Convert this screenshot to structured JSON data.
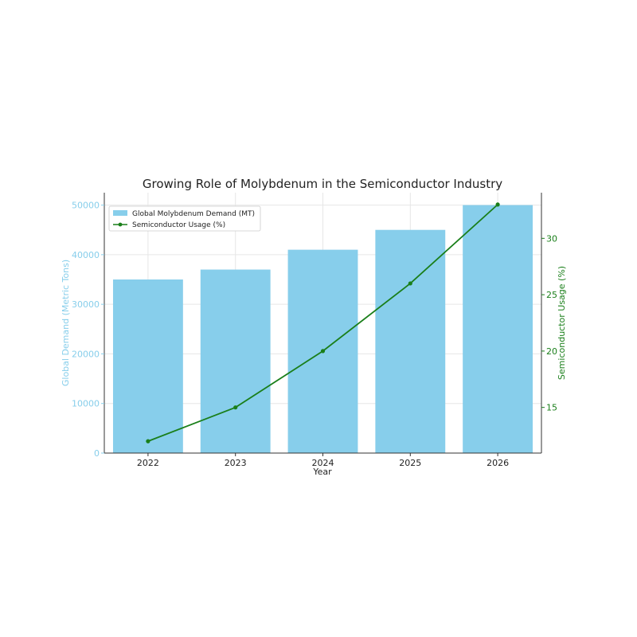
{
  "chart_data": {
    "type": "bar",
    "title": "Growing Role of Molybdenum in the Semiconductor Industry",
    "xlabel": "Year",
    "categories": [
      "2022",
      "2023",
      "2024",
      "2025",
      "2026"
    ],
    "bar_series": {
      "name": "Global Molybdenum Demand (MT)",
      "values": [
        35000,
        37000,
        41000,
        45000,
        50000
      ],
      "color": "#87CEEB"
    },
    "line_series": {
      "name": "Semiconductor Usage (%)",
      "type": "line",
      "values": [
        12,
        15,
        20,
        26,
        33
      ],
      "color": "#1a7f1a"
    },
    "y_left": {
      "label": "Global Demand (Metric Tons)",
      "ylim": [
        0,
        52500
      ],
      "ticks": [
        0,
        10000,
        20000,
        30000,
        40000,
        50000
      ],
      "tick_labels": [
        "0",
        "10000",
        "20000",
        "30000",
        "40000",
        "50000"
      ],
      "color": "#87CEEB"
    },
    "y_right": {
      "label": "Semiconductor Usage (%)",
      "ylim": [
        10.95,
        34.05
      ],
      "ticks": [
        15,
        20,
        25,
        30
      ],
      "tick_labels": [
        "15",
        "20",
        "25",
        "30"
      ],
      "color": "#1a7f1a"
    },
    "grid": true,
    "legend_position": "top-left"
  }
}
